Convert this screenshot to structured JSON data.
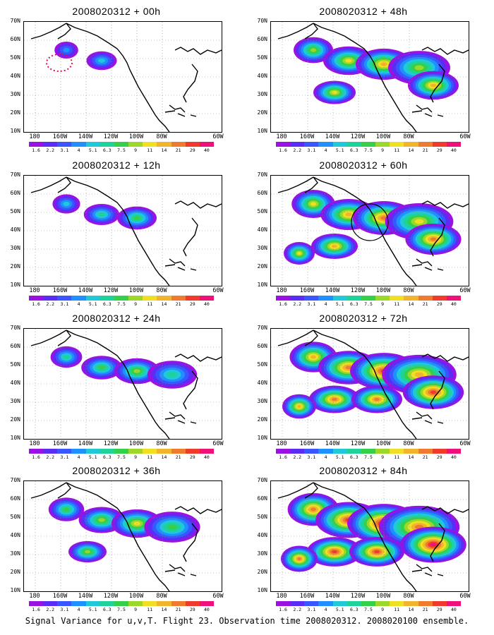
{
  "colorbar": {
    "levels": [
      "1.6",
      "2.2",
      "3.1",
      "4",
      "5.1",
      "6.3",
      "7.5",
      "9",
      "11",
      "14",
      "21",
      "29",
      "40"
    ],
    "colors": [
      "#9a12e2",
      "#5a2cf5",
      "#3a56ff",
      "#1e90ff",
      "#20c8d8",
      "#1dd39a",
      "#34d04a",
      "#9bd82a",
      "#f0e024",
      "#f0b42e",
      "#f07b2e",
      "#f03a2e",
      "#f0107a"
    ]
  },
  "latitude_labels": [
    "70N",
    "60N",
    "50N",
    "40N",
    "30N",
    "20N",
    "10N"
  ],
  "longitude_labels": [
    "180",
    "160W",
    "140W",
    "120W",
    "100W",
    "80W",
    "60W"
  ],
  "panels": [
    {
      "id": "p00",
      "title": "2008020312 + 00h",
      "intensity": 0
    },
    {
      "id": "p48",
      "title": "2008020312 + 48h",
      "intensity": 4
    },
    {
      "id": "p12",
      "title": "2008020312 + 12h",
      "intensity": 1
    },
    {
      "id": "p60",
      "title": "2008020312 + 60h",
      "intensity": 5
    },
    {
      "id": "p24",
      "title": "2008020312 + 24h",
      "intensity": 2
    },
    {
      "id": "p72",
      "title": "2008020312 + 72h",
      "intensity": 6
    },
    {
      "id": "p36",
      "title": "2008020312 + 36h",
      "intensity": 3
    },
    {
      "id": "p84",
      "title": "2008020312 + 84h",
      "intensity": 7
    }
  ],
  "caption": "Signal Variance for u,v,T. Flight 23. Observation time 2008020312. 2008020100 ensemble."
}
